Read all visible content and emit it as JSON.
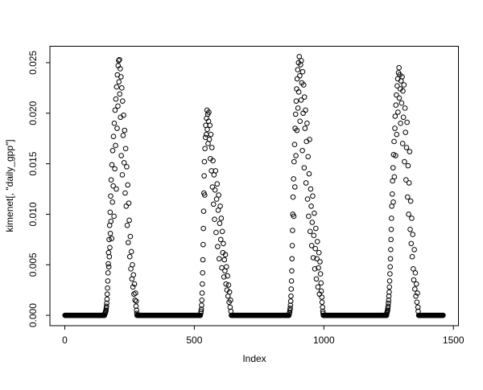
{
  "figure": {
    "background_color": "#ffffff",
    "foreground_color": "#000000"
  },
  "chart_data": {
    "type": "scatter",
    "title": "",
    "xlabel": "Index",
    "ylabel": "kimenet[, \"daily_gpp\"]",
    "x_ticks": [
      0,
      500,
      1000,
      1500
    ],
    "x_tick_labels": [
      "0",
      "500",
      "1000",
      "1500"
    ],
    "y_ticks": [
      0.0,
      0.005,
      0.01,
      0.015,
      0.02,
      0.025
    ],
    "y_tick_labels": [
      "0.000",
      "0.005",
      "0.010",
      "0.015",
      "0.020",
      "0.025"
    ],
    "xlim": [
      -57.4,
      1519.4
    ],
    "ylim": [
      -0.001024,
      0.026624
    ],
    "grid": false,
    "legend": null,
    "marker": {
      "shape": "open-circle",
      "color": "#000000",
      "radius_px": 2.8
    },
    "n_points_total": 1461,
    "zero_value": 0.0,
    "zero_step": 2,
    "zero_segments": [
      [
        1,
        154
      ],
      [
        279,
        524
      ],
      [
        643,
        866
      ],
      [
        998,
        1242
      ],
      [
        1366,
        1461
      ]
    ],
    "points": [
      [
        155,
        0.0002
      ],
      [
        156,
        0.0002
      ],
      [
        157,
        0.0003
      ],
      [
        158,
        0.0004
      ],
      [
        159,
        0.0005
      ],
      [
        160,
        0.0007
      ],
      [
        161,
        0.0009
      ],
      [
        162,
        0.0012
      ],
      [
        163,
        0.0016
      ],
      [
        164,
        0.0021
      ],
      [
        165,
        0.0027
      ],
      [
        166,
        0.0034
      ],
      [
        167,
        0.0042
      ],
      [
        168,
        0.0051
      ],
      [
        169,
        0.0062
      ],
      [
        170,
        0.0048
      ],
      [
        171,
        0.0075
      ],
      [
        172,
        0.0058
      ],
      [
        173,
        0.0089
      ],
      [
        174,
        0.0067
      ],
      [
        175,
        0.0102
      ],
      [
        176,
        0.0081
      ],
      [
        177,
        0.0118
      ],
      [
        178,
        0.0093
      ],
      [
        179,
        0.0134
      ],
      [
        181,
        0.0076
      ],
      [
        182,
        0.0149
      ],
      [
        184,
        0.0112
      ],
      [
        185,
        0.0163
      ],
      [
        187,
        0.0128
      ],
      [
        188,
        0.0177
      ],
      [
        190,
        0.0098
      ],
      [
        191,
        0.019
      ],
      [
        193,
        0.0145
      ],
      [
        194,
        0.0203
      ],
      [
        196,
        0.0168
      ],
      [
        197,
        0.0214
      ],
      [
        199,
        0.0125
      ],
      [
        200,
        0.0226
      ],
      [
        202,
        0.0185
      ],
      [
        203,
        0.0238
      ],
      [
        205,
        0.0207
      ],
      [
        206,
        0.0247
      ],
      [
        208,
        0.0252
      ],
      [
        209,
        0.0231
      ],
      [
        211,
        0.0253
      ],
      [
        212,
        0.0219
      ],
      [
        214,
        0.0244
      ],
      [
        215,
        0.0196
      ],
      [
        217,
        0.0236
      ],
      [
        218,
        0.0158
      ],
      [
        220,
        0.0225
      ],
      [
        222,
        0.0139
      ],
      [
        223,
        0.0212
      ],
      [
        225,
        0.0178
      ],
      [
        227,
        0.0198
      ],
      [
        229,
        0.0151
      ],
      [
        231,
        0.0183
      ],
      [
        233,
        0.0121
      ],
      [
        235,
        0.0165
      ],
      [
        237,
        0.0108
      ],
      [
        239,
        0.0147
      ],
      [
        241,
        0.0089
      ],
      [
        243,
        0.0129
      ],
      [
        245,
        0.0072
      ],
      [
        247,
        0.0111
      ],
      [
        249,
        0.0094
      ],
      [
        251,
        0.0058
      ],
      [
        253,
        0.0078
      ],
      [
        255,
        0.0046
      ],
      [
        257,
        0.0063
      ],
      [
        259,
        0.0036
      ],
      [
        261,
        0.005
      ],
      [
        263,
        0.0028
      ],
      [
        265,
        0.004
      ],
      [
        267,
        0.0021
      ],
      [
        269,
        0.0031
      ],
      [
        271,
        0.0015
      ],
      [
        273,
        0.0022
      ],
      [
        275,
        0.0009
      ],
      [
        276,
        0.0014
      ],
      [
        277,
        0.0005
      ],
      [
        278,
        0.0002
      ],
      [
        525,
        0.0002
      ],
      [
        526,
        0.0004
      ],
      [
        527,
        0.0006
      ],
      [
        528,
        0.001
      ],
      [
        529,
        0.0015
      ],
      [
        530,
        0.0022
      ],
      [
        531,
        0.0031
      ],
      [
        532,
        0.0042
      ],
      [
        533,
        0.0055
      ],
      [
        534,
        0.007
      ],
      [
        535,
        0.0086
      ],
      [
        536,
        0.0103
      ],
      [
        537,
        0.0121
      ],
      [
        538,
        0.0138
      ],
      [
        539,
        0.0152
      ],
      [
        540,
        0.0119
      ],
      [
        541,
        0.0165
      ],
      [
        543,
        0.0176
      ],
      [
        544,
        0.0188
      ],
      [
        546,
        0.0179
      ],
      [
        547,
        0.0195
      ],
      [
        549,
        0.0203
      ],
      [
        550,
        0.0184
      ],
      [
        552,
        0.0199
      ],
      [
        553,
        0.017
      ],
      [
        555,
        0.0192
      ],
      [
        556,
        0.0201
      ],
      [
        558,
        0.0174
      ],
      [
        560,
        0.0188
      ],
      [
        562,
        0.0155
      ],
      [
        564,
        0.0179
      ],
      [
        566,
        0.0143
      ],
      [
        568,
        0.0166
      ],
      [
        570,
        0.0127
      ],
      [
        572,
        0.0153
      ],
      [
        574,
        0.011
      ],
      [
        576,
        0.0139
      ],
      [
        578,
        0.0095
      ],
      [
        580,
        0.0124
      ],
      [
        582,
        0.0143
      ],
      [
        584,
        0.0082
      ],
      [
        586,
        0.0115
      ],
      [
        588,
        0.013
      ],
      [
        590,
        0.0068
      ],
      [
        592,
        0.0104
      ],
      [
        594,
        0.0119
      ],
      [
        596,
        0.0056
      ],
      [
        598,
        0.0091
      ],
      [
        600,
        0.0108
      ],
      [
        602,
        0.0075
      ],
      [
        604,
        0.0096
      ],
      [
        606,
        0.0047
      ],
      [
        608,
        0.0083
      ],
      [
        610,
        0.0062
      ],
      [
        612,
        0.0071
      ],
      [
        614,
        0.0038
      ],
      [
        616,
        0.0055
      ],
      [
        618,
        0.0044
      ],
      [
        620,
        0.006
      ],
      [
        622,
        0.0031
      ],
      [
        624,
        0.0048
      ],
      [
        626,
        0.0025
      ],
      [
        628,
        0.0039
      ],
      [
        630,
        0.0019
      ],
      [
        632,
        0.003
      ],
      [
        634,
        0.0013
      ],
      [
        636,
        0.0023
      ],
      [
        638,
        0.0008
      ],
      [
        640,
        0.0015
      ],
      [
        641,
        0.0004
      ],
      [
        867,
        0.0002
      ],
      [
        868,
        0.0003
      ],
      [
        869,
        0.0005
      ],
      [
        870,
        0.0007
      ],
      [
        871,
        0.001
      ],
      [
        872,
        0.0014
      ],
      [
        873,
        0.0019
      ],
      [
        874,
        0.0026
      ],
      [
        875,
        0.0034
      ],
      [
        876,
        0.0044
      ],
      [
        877,
        0.0056
      ],
      [
        878,
        0.0069
      ],
      [
        879,
        0.0084
      ],
      [
        880,
        0.01
      ],
      [
        881,
        0.0117
      ],
      [
        883,
        0.0135
      ],
      [
        884,
        0.0098
      ],
      [
        885,
        0.0152
      ],
      [
        887,
        0.0169
      ],
      [
        888,
        0.0127
      ],
      [
        889,
        0.0185
      ],
      [
        891,
        0.0199
      ],
      [
        892,
        0.0158
      ],
      [
        893,
        0.0212
      ],
      [
        895,
        0.0224
      ],
      [
        896,
        0.0183
      ],
      [
        897,
        0.0234
      ],
      [
        899,
        0.0243
      ],
      [
        900,
        0.0205
      ],
      [
        902,
        0.025
      ],
      [
        903,
        0.0221
      ],
      [
        905,
        0.0256
      ],
      [
        907,
        0.0237
      ],
      [
        908,
        0.0192
      ],
      [
        910,
        0.0248
      ],
      [
        912,
        0.0213
      ],
      [
        913,
        0.0252
      ],
      [
        915,
        0.023
      ],
      [
        917,
        0.0163
      ],
      [
        918,
        0.0241
      ],
      [
        920,
        0.02
      ],
      [
        922,
        0.0228
      ],
      [
        924,
        0.0146
      ],
      [
        925,
        0.0216
      ],
      [
        927,
        0.0185
      ],
      [
        929,
        0.0203
      ],
      [
        931,
        0.0131
      ],
      [
        933,
        0.0172
      ],
      [
        935,
        0.019
      ],
      [
        937,
        0.0115
      ],
      [
        939,
        0.0157
      ],
      [
        941,
        0.0098
      ],
      [
        943,
        0.014
      ],
      [
        945,
        0.0174
      ],
      [
        947,
        0.0083
      ],
      [
        949,
        0.0125
      ],
      [
        951,
        0.0108
      ],
      [
        953,
        0.0069
      ],
      [
        955,
        0.0092
      ],
      [
        957,
        0.0118
      ],
      [
        959,
        0.0057
      ],
      [
        961,
        0.0079
      ],
      [
        963,
        0.0101
      ],
      [
        965,
        0.0046
      ],
      [
        967,
        0.0066
      ],
      [
        969,
        0.0086
      ],
      [
        971,
        0.0036
      ],
      [
        973,
        0.0056
      ],
      [
        975,
        0.0073
      ],
      [
        977,
        0.0028
      ],
      [
        979,
        0.0047
      ],
      [
        981,
        0.0062
      ],
      [
        983,
        0.0021
      ],
      [
        985,
        0.0053
      ],
      [
        987,
        0.0041
      ],
      [
        989,
        0.0032
      ],
      [
        990,
        0.0024
      ],
      [
        992,
        0.0018
      ],
      [
        993,
        0.0013
      ],
      [
        995,
        0.0008
      ],
      [
        996,
        0.0004
      ],
      [
        997,
        0.0002
      ],
      [
        1243,
        0.0002
      ],
      [
        1244,
        0.0003
      ],
      [
        1245,
        0.0004
      ],
      [
        1246,
        0.0005
      ],
      [
        1247,
        0.0007
      ],
      [
        1248,
        0.0009
      ],
      [
        1249,
        0.0012
      ],
      [
        1250,
        0.0015
      ],
      [
        1251,
        0.0019
      ],
      [
        1252,
        0.0023
      ],
      [
        1253,
        0.0028
      ],
      [
        1254,
        0.0034
      ],
      [
        1255,
        0.0041
      ],
      [
        1256,
        0.0048
      ],
      [
        1257,
        0.0056
      ],
      [
        1258,
        0.0065
      ],
      [
        1259,
        0.0075
      ],
      [
        1260,
        0.0085
      ],
      [
        1261,
        0.0096
      ],
      [
        1262,
        0.0108
      ],
      [
        1264,
        0.012
      ],
      [
        1265,
        0.0133
      ],
      [
        1267,
        0.0146
      ],
      [
        1268,
        0.0112
      ],
      [
        1269,
        0.0159
      ],
      [
        1271,
        0.0172
      ],
      [
        1272,
        0.0137
      ],
      [
        1274,
        0.0185
      ],
      [
        1275,
        0.0197
      ],
      [
        1277,
        0.0158
      ],
      [
        1278,
        0.0208
      ],
      [
        1280,
        0.0218
      ],
      [
        1281,
        0.0179
      ],
      [
        1283,
        0.0227
      ],
      [
        1285,
        0.0234
      ],
      [
        1286,
        0.0201
      ],
      [
        1288,
        0.024
      ],
      [
        1290,
        0.0245
      ],
      [
        1291,
        0.0215
      ],
      [
        1293,
        0.0238
      ],
      [
        1295,
        0.0224
      ],
      [
        1296,
        0.019
      ],
      [
        1298,
        0.0232
      ],
      [
        1300,
        0.021
      ],
      [
        1302,
        0.0236
      ],
      [
        1304,
        0.017
      ],
      [
        1305,
        0.0222
      ],
      [
        1307,
        0.0196
      ],
      [
        1309,
        0.0228
      ],
      [
        1311,
        0.0152
      ],
      [
        1313,
        0.0205
      ],
      [
        1315,
        0.0181
      ],
      [
        1317,
        0.0134
      ],
      [
        1319,
        0.0166
      ],
      [
        1321,
        0.0191
      ],
      [
        1323,
        0.0117
      ],
      [
        1325,
        0.0148
      ],
      [
        1327,
        0.01
      ],
      [
        1329,
        0.0131
      ],
      [
        1331,
        0.0162
      ],
      [
        1333,
        0.0085
      ],
      [
        1335,
        0.0113
      ],
      [
        1337,
        0.0071
      ],
      [
        1339,
        0.0096
      ],
      [
        1341,
        0.0058
      ],
      [
        1343,
        0.008
      ],
      [
        1345,
        0.0046
      ],
      [
        1347,
        0.0035
      ],
      [
        1349,
        0.0065
      ],
      [
        1351,
        0.0026
      ],
      [
        1353,
        0.0042
      ],
      [
        1355,
        0.0019
      ],
      [
        1357,
        0.0031
      ],
      [
        1359,
        0.0013
      ],
      [
        1361,
        0.0022
      ],
      [
        1363,
        0.0008
      ],
      [
        1364,
        0.0004
      ]
    ]
  }
}
